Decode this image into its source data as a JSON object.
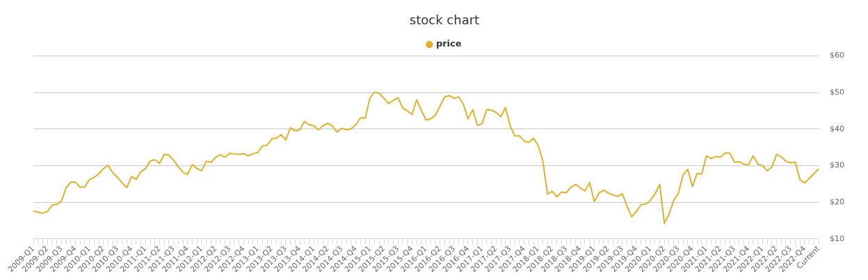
{
  "chart_data": {
    "type": "line",
    "title": "stock chart",
    "categories": [
      "2009-Q1",
      null,
      null,
      "2009-Q2",
      null,
      null,
      "2009-Q3",
      null,
      null,
      "2009-Q4",
      null,
      null,
      "2010-Q1",
      null,
      null,
      "2010-Q2",
      null,
      null,
      "2010-Q3",
      null,
      null,
      "2010-Q4",
      null,
      null,
      "2011-Q1",
      null,
      null,
      "2011-Q2",
      null,
      null,
      "2011-Q3",
      null,
      null,
      "2011-Q4",
      null,
      null,
      "2012-Q1",
      null,
      null,
      "2012-Q2",
      null,
      null,
      "2012-Q3",
      null,
      null,
      "2012-Q4",
      null,
      null,
      "2013-Q1",
      null,
      null,
      "2013-Q2",
      null,
      null,
      "2013-Q3",
      null,
      null,
      "2013-Q4",
      null,
      null,
      "2014-Q1",
      null,
      null,
      "2014-Q2",
      null,
      null,
      "2014-Q3",
      null,
      null,
      "2014-Q4",
      null,
      null,
      "2015-Q1",
      null,
      null,
      "2015-Q2",
      null,
      null,
      "2015-Q3",
      null,
      null,
      "2015-Q4",
      null,
      null,
      "2016-Q1",
      null,
      null,
      "2016-Q2",
      null,
      null,
      "2016-Q3",
      null,
      null,
      "2016-Q4",
      null,
      null,
      "2017-Q1",
      null,
      null,
      "2017-Q2",
      null,
      null,
      "2017-Q3",
      null,
      null,
      "2017-Q4",
      null,
      null,
      "2018-Q1",
      null,
      null,
      "2018-Q2",
      null,
      null,
      "2018-Q3",
      null,
      null,
      "2018-Q4",
      null,
      null,
      "2019-Q1",
      null,
      null,
      "2019-Q2",
      null,
      null,
      "2019-Q3",
      null,
      null,
      "2019-Q4",
      null,
      null,
      "2020-Q1",
      null,
      null,
      "2020-Q2",
      null,
      null,
      "2020-Q3",
      null,
      null,
      "2020-Q4",
      null,
      null,
      "2021-Q1",
      null,
      null,
      "2021-Q2",
      null,
      null,
      "2021-Q3",
      null,
      null,
      "2021-Q4",
      null,
      null,
      "2022-Q1",
      null,
      null,
      "2022-Q2",
      null,
      null,
      "2022-Q3",
      null,
      null,
      "2022-Q4",
      null,
      null,
      "Current"
    ],
    "series": [
      {
        "name": "price",
        "color": "#dfb02a",
        "values": [
          17.6,
          17.3,
          17.0,
          17.5,
          19.2,
          19.4,
          20.3,
          23.9,
          25.5,
          25.5,
          24.1,
          24.2,
          26.2,
          26.8,
          27.8,
          29.2,
          30.1,
          28.0,
          26.8,
          25.3,
          24.0,
          27.0,
          26.3,
          28.3,
          29.2,
          31.3,
          31.6,
          30.6,
          33.1,
          32.9,
          31.5,
          29.7,
          28.2,
          27.6,
          30.3,
          29.2,
          28.6,
          31.2,
          30.9,
          32.3,
          33.0,
          32.3,
          33.4,
          33.2,
          33.1,
          33.3,
          32.7,
          33.3,
          33.6,
          35.4,
          35.6,
          37.3,
          37.5,
          38.5,
          37.0,
          40.4,
          39.5,
          39.8,
          42.1,
          41.2,
          40.9,
          39.8,
          41.0,
          41.6,
          40.8,
          39.2,
          40.2,
          39.8,
          40.1,
          41.2,
          43.1,
          43.0,
          48.5,
          50.1,
          49.8,
          48.4,
          47.0,
          47.9,
          48.6,
          45.8,
          45.0,
          44.0,
          48.0,
          45.1,
          42.5,
          42.8,
          43.8,
          46.3,
          48.8,
          49.2,
          48.4,
          48.8,
          46.8,
          42.8,
          45.3,
          41.0,
          41.5,
          45.4,
          45.2,
          44.6,
          43.4,
          45.9,
          40.9,
          38.1,
          38.2,
          36.7,
          36.4,
          37.5,
          35.5,
          31.2,
          22.2,
          23.0,
          21.5,
          22.8,
          22.6,
          24.1,
          24.9,
          23.9,
          23.1,
          25.4,
          20.2,
          22.5,
          23.3,
          22.5,
          22.0,
          21.6,
          22.3,
          19.0,
          16.0,
          17.5,
          19.3,
          19.5,
          20.5,
          22.3,
          24.9,
          14.2,
          16.8,
          20.5,
          22.5,
          27.5,
          29.0,
          24.3,
          27.9,
          27.7,
          32.7,
          31.9,
          32.5,
          32.3,
          33.5,
          33.4,
          31.0,
          31.1,
          30.4,
          30.3,
          32.7,
          30.4,
          30.0,
          28.6,
          29.6,
          33.1,
          32.4,
          31.2,
          30.8,
          31.0,
          26.2,
          25.3,
          26.5,
          27.8,
          29.1
        ]
      }
    ],
    "ylim": [
      10,
      60
    ],
    "yticks": [
      {
        "value": 10,
        "label": "$10"
      },
      {
        "value": 20,
        "label": "$20"
      },
      {
        "value": 30,
        "label": "$30"
      },
      {
        "value": 40,
        "label": "$40"
      },
      {
        "value": 50,
        "label": "$50"
      },
      {
        "value": 60,
        "label": "$60"
      }
    ],
    "grid": "y",
    "legend": "top",
    "marker": "none",
    "line_style": "solid"
  }
}
